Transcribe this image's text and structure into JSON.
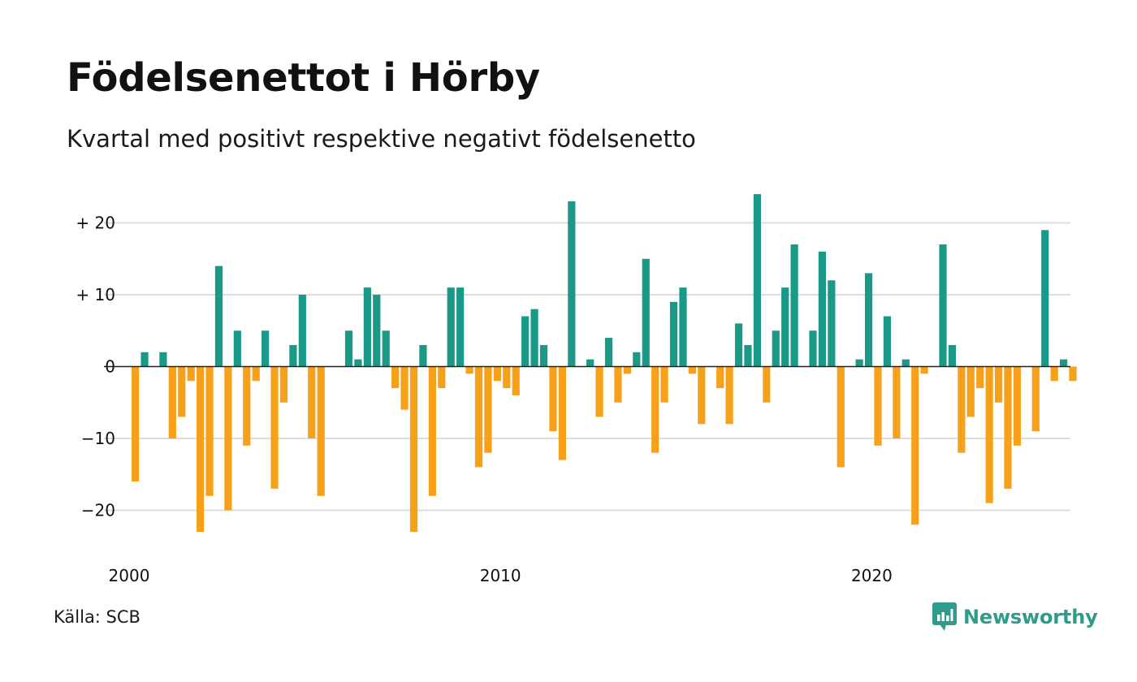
{
  "title": "Födelsenettot i Hörby",
  "subtitle": "Kvartal med positivt respektive negativt födelsenetto",
  "source": "Källa: SCB",
  "brand": {
    "name": "Newsworthy",
    "icon": "newsworthy-logo-icon"
  },
  "colors": {
    "positive": "#1a9988",
    "negative": "#f7a11a",
    "grid": "#dddddd",
    "zero": "#222222"
  },
  "chart_data": {
    "type": "bar",
    "title": "Födelsenettot i Hörby",
    "subtitle": "Kvartal med positivt respektive negativt födelsenetto",
    "xlabel": "",
    "ylabel": "",
    "ylim": [
      -25,
      25
    ],
    "grid": true,
    "legend": "none",
    "x_start": "2000 Q1",
    "x_ticks": [
      "2000",
      "2010",
      "2020"
    ],
    "y_ticks": [
      {
        "value": 20,
        "label": "+ 20"
      },
      {
        "value": 10,
        "label": "+ 10"
      },
      {
        "value": 0,
        "label": "0"
      },
      {
        "value": -10,
        "label": "−10"
      },
      {
        "value": -20,
        "label": "−20"
      }
    ],
    "values": [
      -16,
      2,
      0,
      2,
      -10,
      -7,
      -2,
      -23,
      -18,
      14,
      -20,
      5,
      -11,
      -2,
      5,
      -17,
      -5,
      3,
      10,
      -10,
      -18,
      0,
      0,
      5,
      1,
      11,
      10,
      5,
      -3,
      -6,
      -23,
      3,
      -18,
      -3,
      11,
      11,
      -1,
      -14,
      -12,
      -2,
      -3,
      -4,
      7,
      8,
      3,
      -9,
      -13,
      23,
      0,
      1,
      -7,
      4,
      -5,
      -1,
      2,
      15,
      -12,
      -5,
      9,
      11,
      -1,
      -8,
      0,
      -3,
      -8,
      6,
      3,
      24,
      -5,
      5,
      11,
      17,
      0,
      5,
      16,
      12,
      -14,
      0,
      1,
      13,
      -11,
      7,
      -10,
      1,
      -22,
      -1,
      0,
      17,
      3,
      -12,
      -7,
      -3,
      -19,
      -5,
      -17,
      -11,
      0,
      -9,
      19,
      -2,
      1,
      -2
    ]
  }
}
